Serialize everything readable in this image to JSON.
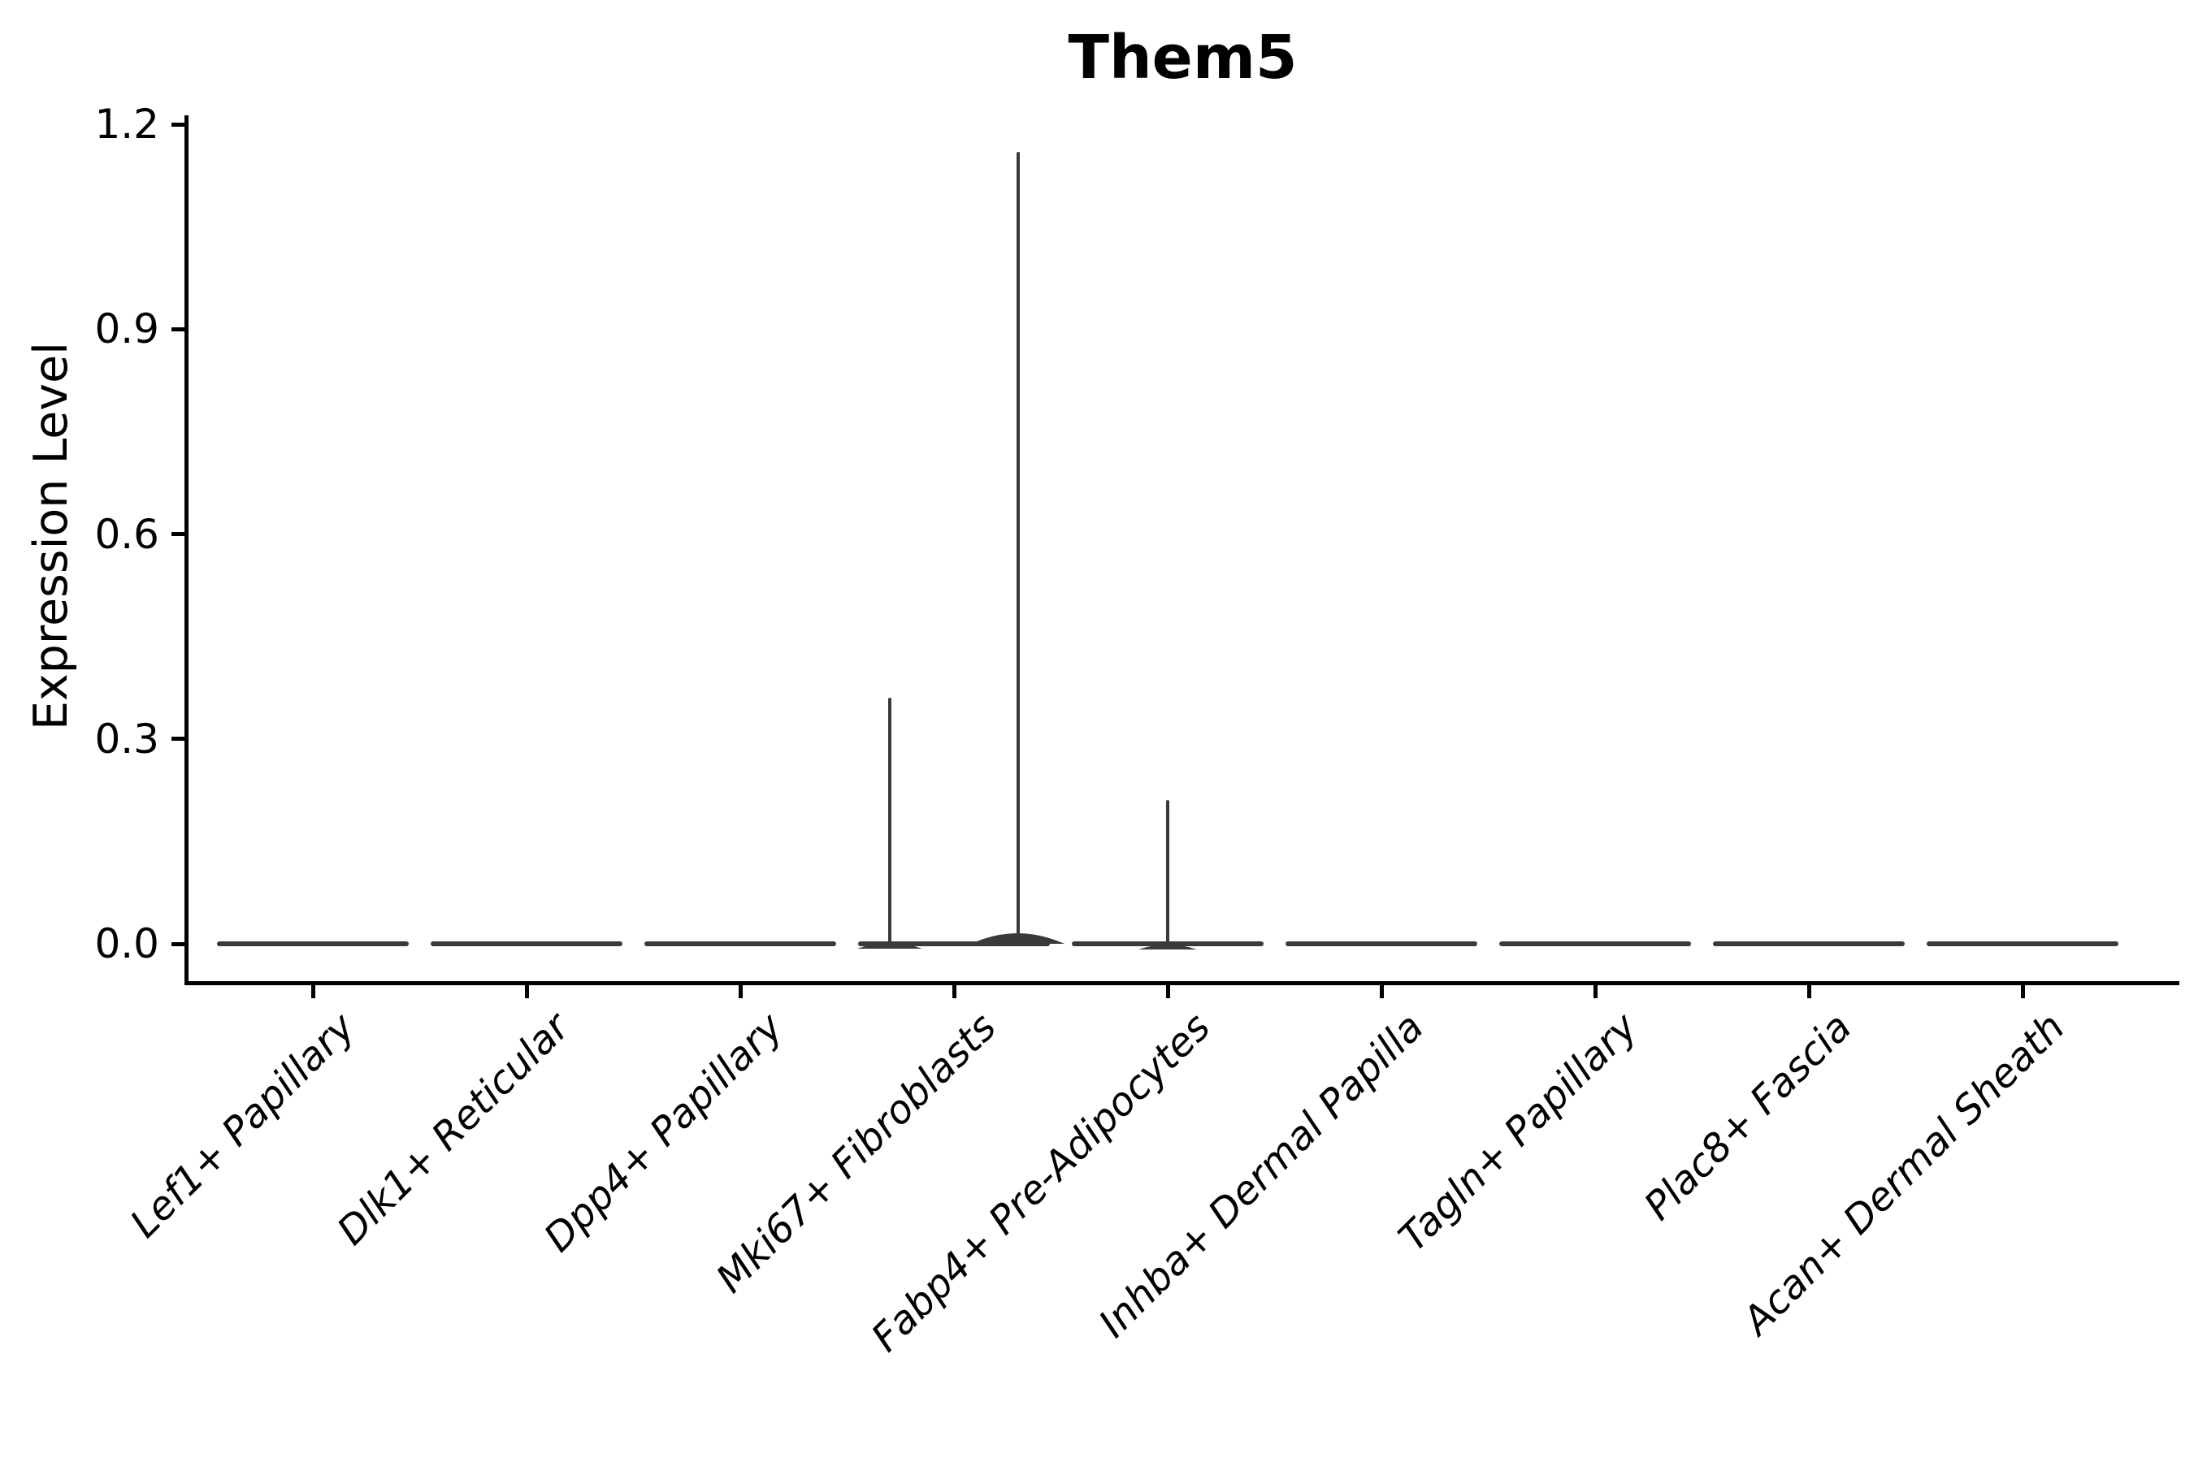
{
  "chart_data": {
    "type": "violin",
    "title": "Them5",
    "ylabel": "Expression Level",
    "xlabel": "",
    "legend": "none",
    "grid": false,
    "ylim": [
      -0.06,
      1.21
    ],
    "yticks": [
      {
        "value": 0.0,
        "label": "0.0"
      },
      {
        "value": 0.3,
        "label": "0.3"
      },
      {
        "value": 0.6,
        "label": "0.6"
      },
      {
        "value": 0.9,
        "label": "0.9"
      },
      {
        "value": 1.2,
        "label": "1.2"
      }
    ],
    "categories": [
      "Lef1+ Papillary",
      "Dlk1+ Reticular",
      "Dpp4+ Papillary",
      "Mki67+ Fibroblasts",
      "Fabp4+ Pre-Adipocytes",
      "Inhba+ Dermal Papilla",
      "Tagln+ Papillary",
      "Plac8+ Fascia",
      "Acan+ Dermal Sheath"
    ],
    "violins": [
      {
        "category": "Lef1+ Papillary",
        "base_value": 0.0,
        "spikes": []
      },
      {
        "category": "Dlk1+ Reticular",
        "base_value": 0.0,
        "spikes": []
      },
      {
        "category": "Dpp4+ Papillary",
        "base_value": 0.0,
        "spikes": []
      },
      {
        "category": "Mki67+ Fibroblasts",
        "base_value": 0.0,
        "spikes": [
          {
            "offset_units": -0.3,
            "value": 0.36
          },
          {
            "offset_units": 0.3,
            "value": 1.16
          }
        ]
      },
      {
        "category": "Fabp4+ Pre-Adipocytes",
        "base_value": 0.0,
        "spikes": [
          {
            "offset_units": 0.0,
            "value": 0.21
          }
        ]
      },
      {
        "category": "Inhba+ Dermal Papilla",
        "base_value": 0.0,
        "spikes": []
      },
      {
        "category": "Tagln+ Papillary",
        "base_value": 0.0,
        "spikes": []
      },
      {
        "category": "Plac8+ Fascia",
        "base_value": 0.0,
        "spikes": []
      },
      {
        "category": "Acan+ Dermal Sheath",
        "base_value": 0.0,
        "spikes": []
      }
    ],
    "colors": {
      "violin": "#3a3a3a",
      "axis": "#000000",
      "text": "#000000",
      "background": "#ffffff"
    }
  }
}
